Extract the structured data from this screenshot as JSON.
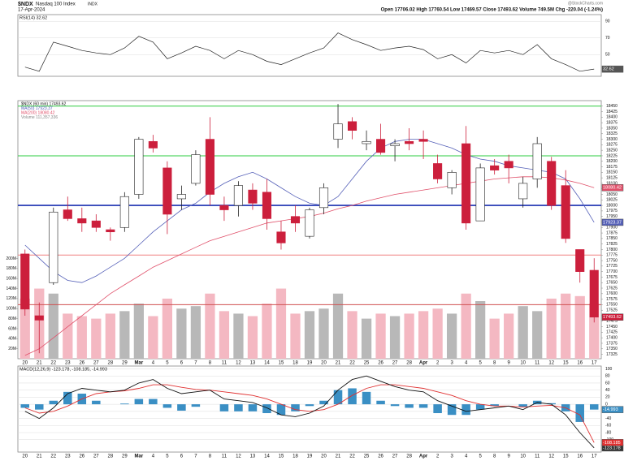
{
  "header": {
    "symbol": "$NDX",
    "name": "Nasdaq 100 Index",
    "exchange": "INDX",
    "date": "17-Apr-2024",
    "quote": "Open 17706.02  High 17760.54  Low 17469.57  Close 17493.62  Volume 749.5M  Chg -220.04 (-1.24%)",
    "source": "@StockCharts.com"
  },
  "chart_data": [
    {
      "type": "line",
      "title": "RSI(14) 32.62",
      "ylim": [
        24,
        98
      ],
      "yticks": [
        90,
        70,
        50
      ],
      "grid": true,
      "series": [
        {
          "name": "RSI(14)",
          "color": "#222222",
          "values": [
            35,
            30,
            65,
            60,
            55,
            52,
            50,
            58,
            72,
            65,
            45,
            52,
            60,
            55,
            45,
            55,
            50,
            42,
            38,
            45,
            52,
            58,
            76,
            68,
            62,
            55,
            58,
            60,
            56,
            45,
            50,
            40,
            55,
            52,
            55,
            50,
            62,
            45,
            38,
            30,
            32.62
          ]
        }
      ]
    },
    {
      "type": "candlestick",
      "legend": [
        "$NDX (60 min) 17493.62",
        "MA(50) 17923.37",
        "MA(200) 18080.42",
        "Volume 111,357,336"
      ],
      "categories": [
        "20",
        "21",
        "22",
        "23",
        "26",
        "27",
        "28",
        "29",
        "Mar",
        "4",
        "5",
        "6",
        "7",
        "8",
        "11",
        "12",
        "13",
        "14",
        "15",
        "18",
        "19",
        "20",
        "21",
        "22",
        "25",
        "26",
        "27",
        "28",
        "Apr",
        "2",
        "3",
        "4",
        "5",
        "8",
        "9",
        "10",
        "11",
        "12",
        "15",
        "16",
        "17"
      ],
      "open": [
        17780,
        17500,
        17650,
        17980,
        17940,
        17930,
        17890,
        17900,
        18050,
        18290,
        18170,
        18030,
        18100,
        18300,
        18000,
        18000,
        18070,
        18060,
        17880,
        17950,
        17860,
        17990,
        18300,
        18380,
        18280,
        18300,
        18270,
        18290,
        18300,
        18190,
        18080,
        18280,
        17930,
        18180,
        18200,
        18030,
        18120,
        18200,
        18090,
        17800,
        17706.02
      ],
      "high": [
        17800,
        17560,
        17990,
        18040,
        17990,
        17960,
        17900,
        18060,
        18310,
        18320,
        18200,
        18090,
        18250,
        18400,
        18040,
        18110,
        18100,
        18120,
        17930,
        18000,
        17990,
        18100,
        18460,
        18400,
        18340,
        18370,
        18300,
        18350,
        18340,
        18230,
        18160,
        18360,
        18190,
        18210,
        18230,
        18130,
        18310,
        18220,
        18160,
        17800,
        17760.54
      ],
      "low": [
        17500,
        17330,
        17640,
        17930,
        17880,
        17880,
        17840,
        17880,
        18030,
        18240,
        17870,
        17980,
        18090,
        18000,
        17930,
        17950,
        17980,
        17890,
        17800,
        17880,
        17850,
        17960,
        18260,
        18300,
        18250,
        18230,
        18200,
        18250,
        18210,
        18100,
        18050,
        17890,
        17930,
        18140,
        18100,
        17990,
        18080,
        17980,
        17830,
        17650,
        17469.57
      ],
      "close": [
        17530,
        17480,
        17970,
        17940,
        17920,
        17900,
        17880,
        18040,
        18300,
        18260,
        17960,
        18050,
        18230,
        18050,
        17980,
        18090,
        18010,
        17940,
        17830,
        17920,
        17980,
        18080,
        18370,
        18340,
        18290,
        18240,
        18280,
        18280,
        18290,
        18120,
        18150,
        17920,
        18170,
        18160,
        18170,
        18100,
        18280,
        18000,
        17850,
        17700,
        17493.62
      ],
      "volume": [
        120,
        140,
        130,
        90,
        85,
        80,
        90,
        95,
        110,
        85,
        120,
        100,
        105,
        130,
        95,
        90,
        85,
        110,
        140,
        90,
        95,
        100,
        130,
        95,
        80,
        90,
        85,
        90,
        95,
        100,
        90,
        130,
        115,
        80,
        90,
        105,
        95,
        120,
        130,
        125,
        110
      ],
      "up_color": "#222222",
      "down_color": "#cc1f3c",
      "series": [
        {
          "name": "MA(50)",
          "color": "#5560b8",
          "values": [
            17820,
            17760,
            17700,
            17660,
            17650,
            17680,
            17720,
            17760,
            17820,
            17880,
            17930,
            17980,
            18010,
            18060,
            18100,
            18130,
            18150,
            18120,
            18080,
            18040,
            18010,
            18000,
            18040,
            18120,
            18200,
            18260,
            18290,
            18300,
            18300,
            18280,
            18260,
            18230,
            18210,
            18200,
            18180,
            18170,
            18160,
            18150,
            18120,
            18030,
            17923.37
          ]
        },
        {
          "name": "MA(200)",
          "color": "#e0506a",
          "values": [
            17320,
            17350,
            17400,
            17450,
            17500,
            17550,
            17600,
            17640,
            17680,
            17720,
            17750,
            17780,
            17810,
            17840,
            17860,
            17880,
            17900,
            17920,
            17930,
            17940,
            17950,
            17965,
            17985,
            18000,
            18020,
            18035,
            18050,
            18060,
            18070,
            18080,
            18090,
            18100,
            18110,
            18120,
            18125,
            18130,
            18130,
            18125,
            18115,
            18100,
            18080.42
          ]
        }
      ],
      "levels": [
        {
          "value": 18450,
          "color": "#2ecc40"
        },
        {
          "value": 18225,
          "color": "#2ecc40"
        },
        {
          "value": 18000,
          "color": "#1a2fb0"
        },
        {
          "value": 17775,
          "color": "#f08080"
        },
        {
          "value": 17550,
          "color": "#d05050"
        }
      ],
      "ylim": [
        17305,
        18475
      ],
      "yticks": [
        18450,
        18425,
        18400,
        18375,
        18350,
        18325,
        18300,
        18275,
        18250,
        18225,
        18200,
        18175,
        18150,
        18125,
        18100,
        18075,
        18050,
        18025,
        18000,
        17975,
        17950,
        17925,
        17900,
        17875,
        17850,
        17825,
        17800,
        17775,
        17750,
        17725,
        17700,
        17675,
        17650,
        17625,
        17600,
        17575,
        17550,
        17525,
        17500,
        17475,
        17450,
        17425,
        17400,
        17375,
        17350,
        17325
      ],
      "volume_ylim": [
        0,
        230
      ],
      "volume_ticks": [
        {
          "value": 200,
          "label": "200M"
        },
        {
          "value": 180,
          "label": "180M"
        },
        {
          "value": 160,
          "label": "160M"
        },
        {
          "value": 140,
          "label": "140M"
        },
        {
          "value": 120,
          "label": "120M"
        },
        {
          "value": 100,
          "label": "100M"
        },
        {
          "value": 80,
          "label": "80M"
        },
        {
          "value": 60,
          "label": "60M"
        },
        {
          "value": 40,
          "label": "40M"
        },
        {
          "value": 20,
          "label": "20M"
        }
      ]
    },
    {
      "type": "macd",
      "title": "MACD(12,26,9) -123.178, -108.185, -14.993",
      "categories": [
        "20",
        "21",
        "22",
        "23",
        "26",
        "27",
        "28",
        "29",
        "Mar",
        "4",
        "5",
        "6",
        "7",
        "8",
        "11",
        "12",
        "13",
        "14",
        "15",
        "18",
        "19",
        "20",
        "21",
        "22",
        "25",
        "26",
        "27",
        "28",
        "Apr",
        "2",
        "3",
        "4",
        "5",
        "8",
        "9",
        "10",
        "11",
        "12",
        "15",
        "16",
        "17"
      ],
      "ylim": [
        -135,
        108
      ],
      "yticks": [
        100,
        80,
        60,
        40,
        20,
        0,
        -20,
        -40,
        -60,
        -80,
        -100
      ],
      "series": [
        {
          "name": "MACD",
          "color": "#111111",
          "values": [
            -20,
            -40,
            -10,
            30,
            45,
            40,
            35,
            40,
            60,
            70,
            45,
            30,
            35,
            40,
            15,
            10,
            5,
            -10,
            -30,
            -35,
            -25,
            -5,
            40,
            70,
            80,
            65,
            50,
            40,
            35,
            10,
            -5,
            -20,
            -15,
            -10,
            -5,
            -15,
            5,
            0,
            -30,
            -80,
            -123.178
          ]
        },
        {
          "name": "Signal",
          "color": "#e03030",
          "values": [
            -10,
            -25,
            -20,
            -5,
            15,
            30,
            35,
            38,
            45,
            55,
            55,
            48,
            42,
            40,
            35,
            30,
            25,
            15,
            0,
            -15,
            -20,
            -15,
            0,
            25,
            45,
            55,
            55,
            50,
            45,
            35,
            25,
            10,
            0,
            -5,
            -5,
            -8,
            -5,
            -3,
            -10,
            -30,
            -108.185
          ]
        },
        {
          "name": "Histogram",
          "color": "#3a8fc4",
          "values": [
            -10,
            -15,
            10,
            35,
            30,
            10,
            0,
            2,
            15,
            15,
            -10,
            -18,
            -7,
            0,
            -20,
            -20,
            -20,
            -25,
            -30,
            -20,
            -5,
            10,
            40,
            45,
            35,
            10,
            -5,
            -10,
            -10,
            -25,
            -30,
            -30,
            -15,
            -5,
            0,
            -7,
            10,
            3,
            -20,
            -50,
            -14.993
          ]
        }
      ]
    }
  ]
}
